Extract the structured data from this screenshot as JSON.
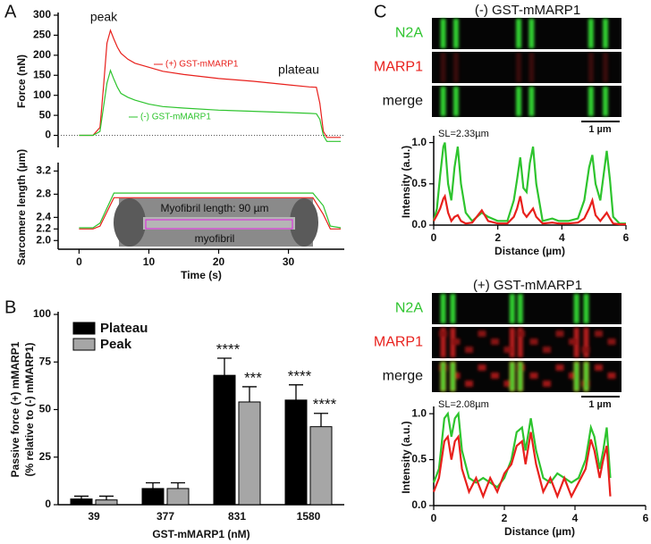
{
  "chart_data": [
    {
      "type": "line",
      "panel": "A",
      "y_label": "Force (nN)",
      "annotations": [
        "peak",
        "plateau"
      ],
      "xlim": [
        -3,
        38
      ],
      "ylim": [
        -30,
        300
      ],
      "yticks": [
        0,
        50,
        100,
        150,
        200,
        250,
        300
      ],
      "x": [
        0,
        2,
        3,
        3.5,
        4,
        4.5,
        5,
        5.5,
        6,
        7,
        8,
        10,
        12,
        15,
        20,
        25,
        30,
        33,
        34,
        34.5,
        35,
        35.5,
        36,
        37.5
      ],
      "series": [
        {
          "name": "(+) GST-mMARP1",
          "color": "#e8201c",
          "values": [
            0,
            0,
            20,
            120,
            230,
            262,
            240,
            220,
            205,
            190,
            180,
            170,
            160,
            152,
            142,
            135,
            126,
            121,
            120,
            80,
            10,
            -5,
            -5,
            -5
          ]
        },
        {
          "name": "(-) GST-mMARP1",
          "color": "#2ec42e",
          "values": [
            0,
            0,
            10,
            70,
            130,
            162,
            140,
            120,
            105,
            95,
            88,
            78,
            72,
            68,
            63,
            60,
            57,
            55,
            54,
            40,
            0,
            -15,
            -15,
            -15
          ]
        }
      ]
    },
    {
      "type": "line",
      "y_label": "Sarcomere length (µm)",
      "x_label": "Time (s)",
      "image_title": "Myofibril length: 90 µm",
      "image_label": "myofibril",
      "xlim": [
        -3,
        38
      ],
      "xticks": [
        0,
        10,
        20,
        30
      ],
      "ylim": [
        1.85,
        3.3
      ],
      "yticks": [
        {
          "value": 2.0,
          "label": "2.0"
        },
        2.2,
        2.4,
        2.8,
        3.2
      ],
      "x": [
        0,
        2,
        3,
        5,
        33.5,
        35,
        36,
        37.5
      ],
      "series": [
        {
          "color": "#e8201c",
          "values": [
            2.2,
            2.2,
            2.25,
            2.74,
            2.74,
            2.45,
            2.2,
            2.2
          ]
        },
        {
          "color": "#2ec42e",
          "values": [
            2.22,
            2.22,
            2.3,
            2.82,
            2.82,
            2.6,
            2.25,
            2.22
          ]
        }
      ]
    },
    {
      "type": "bar",
      "panel": "B",
      "y_label": [
        "Passive force (+) mMARP1",
        "(% relative to (-) mMARP1)"
      ],
      "x_label": "GST-mMARP1 (nM)",
      "categories": [
        "39",
        "377",
        "831",
        "1580"
      ],
      "ylim": [
        0,
        100
      ],
      "yticks": [
        0,
        25,
        50,
        75,
        100
      ],
      "annotations": [
        "****",
        "***",
        "****",
        "****"
      ],
      "series": [
        {
          "name": "Plateau",
          "color": "#000000",
          "values": [
            3,
            8.5,
            68,
            55
          ],
          "errors": [
            1.5,
            3,
            9,
            8
          ]
        },
        {
          "name": "Peak",
          "color": "#a6a6a6",
          "values": [
            2.5,
            8.5,
            54,
            41
          ],
          "errors": [
            2,
            3,
            8,
            7
          ]
        }
      ]
    },
    {
      "type": "line",
      "panel": "C",
      "title": "(-) GST-mMARP1",
      "merge_label": "merge",
      "scale_bar": "1 µm",
      "annotation": "SL=2.33µm",
      "y_label": "Intensity (a.u.)",
      "x_label": "Distance (µm)",
      "xlim": [
        0,
        6
      ],
      "xticks": [
        0,
        2,
        4,
        6
      ],
      "ylim": [
        0,
        1.05
      ],
      "yticks": [
        {
          "value": 0,
          "label": "0.0"
        },
        {
          "value": 0.5,
          "label": "0.5"
        },
        {
          "value": 1,
          "label": "1.0"
        }
      ],
      "x": [
        0,
        0.1,
        0.2,
        0.3,
        0.35,
        0.45,
        0.55,
        0.65,
        0.75,
        0.85,
        1.0,
        1.2,
        1.5,
        1.7,
        2.0,
        2.3,
        2.5,
        2.6,
        2.7,
        2.8,
        2.9,
        3.0,
        3.1,
        3.2,
        3.4,
        3.7,
        3.9,
        4.2,
        4.5,
        4.7,
        4.85,
        4.95,
        5.05,
        5.2,
        5.3,
        5.4,
        5.5,
        5.6,
        5.8,
        6.0
      ],
      "series": [
        {
          "name": "N2A",
          "color": "#2ec42e",
          "values": [
            0.05,
            0.2,
            0.6,
            0.95,
            1.0,
            0.5,
            0.3,
            0.7,
            0.95,
            0.5,
            0.15,
            0.05,
            0.15,
            0.1,
            0.05,
            0.05,
            0.3,
            0.55,
            0.82,
            0.45,
            0.4,
            0.75,
            0.95,
            0.5,
            0.05,
            0.08,
            0.05,
            0.05,
            0.08,
            0.3,
            0.7,
            0.85,
            0.5,
            0.3,
            0.6,
            0.9,
            0.55,
            0.1,
            0.02,
            0.02
          ]
        },
        {
          "name": "MARP1",
          "color": "#e8201c",
          "values": [
            0.05,
            0.12,
            0.2,
            0.32,
            0.35,
            0.15,
            0.05,
            0.1,
            0.12,
            0.05,
            0.02,
            0.03,
            0.18,
            0.05,
            0.02,
            0.02,
            0.1,
            0.2,
            0.35,
            0.15,
            0.1,
            0.15,
            0.2,
            0.1,
            0.02,
            0.03,
            0.02,
            0.02,
            0.03,
            0.08,
            0.2,
            0.3,
            0.12,
            0.05,
            0.1,
            0.15,
            0.08,
            0.02,
            0.01,
            0.01
          ]
        }
      ]
    },
    {
      "type": "line",
      "title": "(+) GST-mMARP1",
      "merge_label": "merge",
      "scale_bar": "1 µm",
      "annotation": "SL=2.08µm",
      "y_label": "Intensity (a.u.)",
      "x_label": "Distance (µm)",
      "xlim": [
        0,
        6
      ],
      "xticks": [
        0,
        2,
        4,
        6
      ],
      "ylim": [
        0,
        1.05
      ],
      "yticks": [
        {
          "value": 0,
          "label": "0.0"
        },
        {
          "value": 0.5,
          "label": "0.5"
        },
        {
          "value": 1,
          "label": "1.0"
        }
      ],
      "x": [
        0,
        0.15,
        0.3,
        0.4,
        0.5,
        0.6,
        0.7,
        0.8,
        1.0,
        1.2,
        1.4,
        1.6,
        1.8,
        2.0,
        2.2,
        2.35,
        2.5,
        2.6,
        2.75,
        2.9,
        3.1,
        3.3,
        3.5,
        3.7,
        3.9,
        4.1,
        4.3,
        4.45,
        4.55,
        4.7,
        4.8,
        4.9,
        5.0
      ],
      "series": [
        {
          "name": "N2A",
          "color": "#2ec42e",
          "values": [
            0.25,
            0.4,
            0.95,
            1.0,
            0.75,
            0.95,
            1.0,
            0.6,
            0.3,
            0.25,
            0.3,
            0.25,
            0.2,
            0.3,
            0.5,
            0.8,
            0.85,
            0.6,
            0.95,
            0.6,
            0.3,
            0.25,
            0.35,
            0.3,
            0.25,
            0.3,
            0.5,
            0.85,
            0.75,
            0.4,
            0.6,
            0.85,
            0.3
          ]
        },
        {
          "name": "MARP1",
          "color": "#e8201c",
          "values": [
            0.15,
            0.3,
            0.7,
            0.75,
            0.5,
            0.7,
            0.75,
            0.4,
            0.15,
            0.3,
            0.1,
            0.3,
            0.15,
            0.35,
            0.45,
            0.65,
            0.7,
            0.45,
            0.8,
            0.45,
            0.15,
            0.3,
            0.1,
            0.3,
            0.1,
            0.25,
            0.4,
            0.72,
            0.6,
            0.3,
            0.5,
            0.65,
            0.1
          ]
        }
      ]
    }
  ]
}
